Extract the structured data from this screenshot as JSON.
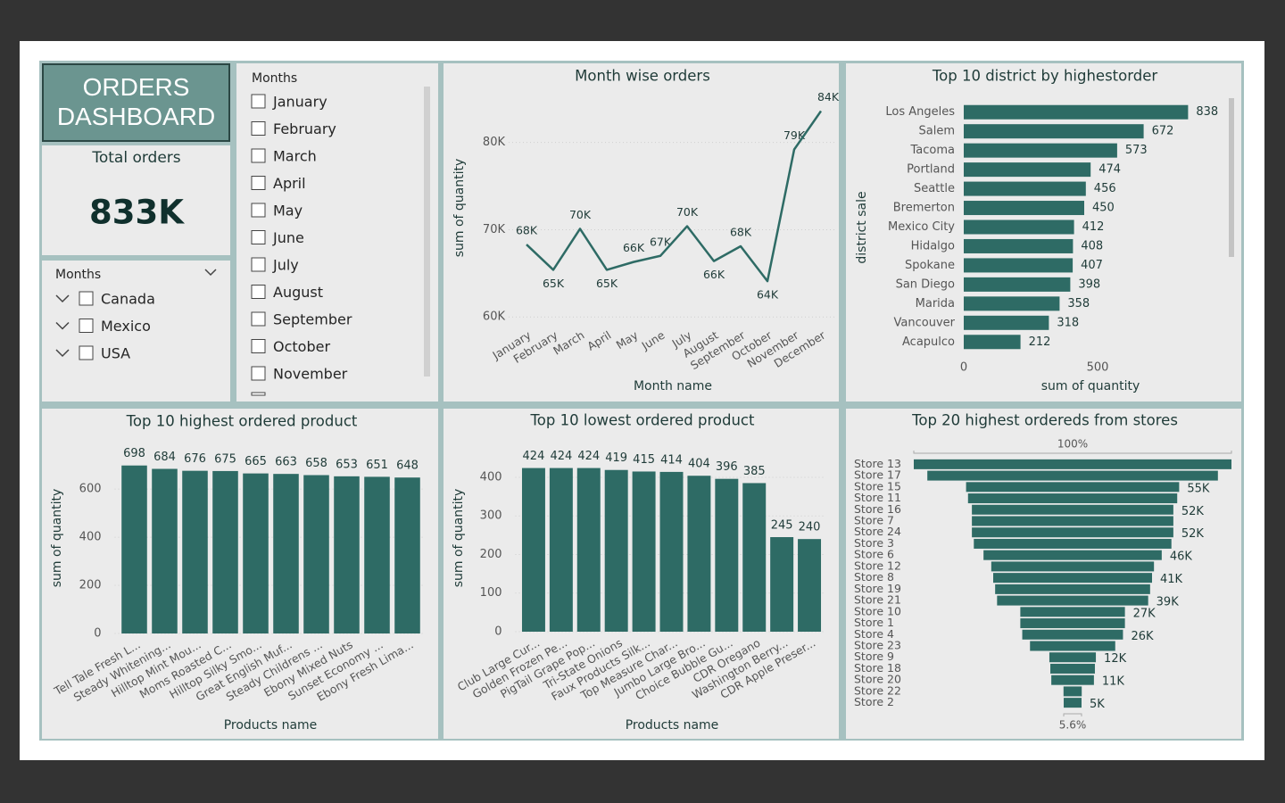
{
  "header": {
    "title": "ORDERS DASHBOARD"
  },
  "kpi": {
    "title": "Total orders",
    "value": "833K"
  },
  "slicers": [
    {
      "title": "Months",
      "items": [
        "Canada",
        "Mexico",
        "USA"
      ]
    },
    {
      "title": "Months",
      "items": [
        "January",
        "February",
        "March",
        "April",
        "May",
        "June",
        "July",
        "August",
        "September",
        "October",
        "November"
      ]
    }
  ],
  "chart_data": [
    {
      "type": "line",
      "title": "Month wise orders",
      "x_label": "Month name",
      "y_label": "sum of quantity",
      "categories": [
        "January",
        "February",
        "March",
        "April",
        "May",
        "June",
        "July",
        "August",
        "September",
        "October",
        "November",
        "December"
      ],
      "values": [
        68300,
        65400,
        70100,
        65400,
        66300,
        67000,
        70400,
        66400,
        68100,
        64100,
        79200,
        83600
      ],
      "value_labels": [
        "68K",
        "65K",
        "70K",
        "65K",
        "66K",
        "67K",
        "70K",
        "66K",
        "68K",
        "64K",
        "79K",
        "84K"
      ],
      "color": "#2e6b65",
      "ylim": [
        59000,
        86000
      ],
      "yticks": [
        {
          "value": 60000,
          "label": "60K"
        },
        {
          "value": 70000,
          "label": "70K"
        },
        {
          "value": 80000,
          "label": "80K"
        }
      ],
      "grid": true
    },
    {
      "type": "hbar",
      "title": "Top 10 district by highestorder",
      "x_label": "sum of quantity",
      "y_label": "district sale",
      "categories": [
        "Los Angeles",
        "Salem",
        "Tacoma",
        "Portland",
        "Seattle",
        "Bremerton",
        "Mexico City",
        "Hidalgo",
        "Spokane",
        "San Diego",
        "Marida",
        "Vancouver",
        "Acapulco"
      ],
      "values": [
        838,
        672,
        573,
        474,
        456,
        450,
        412,
        408,
        407,
        398,
        358,
        318,
        212
      ],
      "color": "#2e6b65",
      "xlim": [
        0,
        850
      ],
      "xticks": [
        0,
        500
      ]
    },
    {
      "type": "bar",
      "title": "Top 10 highest ordered product",
      "x_label": "Products name",
      "y_label": "sum of quantity",
      "categories": [
        "Tell Tale Fresh L...",
        "Steady Whitening...",
        "Hilltop Mint Mou...",
        "Moms Roasted C...",
        "Hilltop Silky Smo...",
        "Great English Muf...",
        "Steady Childrens ...",
        "Ebony Mixed Nuts",
        "Sunset Economy ...",
        "Ebony Fresh Lima..."
      ],
      "values": [
        698,
        684,
        676,
        675,
        665,
        663,
        658,
        653,
        651,
        648
      ],
      "color": "#2e6b65",
      "ylim": [
        0,
        760
      ],
      "yticks": [
        0,
        200,
        400,
        600
      ],
      "grid": true
    },
    {
      "type": "bar",
      "title": "Top 10 lowest ordered product",
      "x_label": "Products name",
      "y_label": "sum of quantity",
      "categories": [
        "Club Large Cur...",
        "Golden Frozen Pe...",
        "PigTail Grape Pop...",
        "Tri-State Onions",
        "Faux Products Silk...",
        "Top Measure Char...",
        "Jumbo Large Bro...",
        "Choice Bubble Gu...",
        "CDR Oregano",
        "Washington Berry...",
        "CDR Apple Preser..."
      ],
      "values": [
        424,
        424,
        424,
        419,
        415,
        414,
        404,
        396,
        385,
        245,
        240
      ],
      "color": "#2e6b65",
      "ylim": [
        0,
        460
      ],
      "yticks": [
        0,
        100,
        200,
        300,
        400
      ],
      "grid": true
    },
    {
      "type": "funnel",
      "title": "Top 20 highest ordereds from stores",
      "categories": [
        "Store 13",
        "Store 17",
        "Store 15",
        "Store 11",
        "Store 16",
        "Store 7",
        "Store 24",
        "Store 3",
        "Store 6",
        "Store 12",
        "Store 8",
        "Store 19",
        "Store 21",
        "Store 10",
        "Store 1",
        "Store 4",
        "Store 23",
        "Store 9",
        "Store 18",
        "Store 20",
        "Store 22",
        "Store 2"
      ],
      "values": [
        82000,
        75000,
        55000,
        54000,
        52000,
        52000,
        52000,
        51000,
        46000,
        42000,
        41000,
        40000,
        39000,
        27000,
        27000,
        26000,
        22000,
        12000,
        11500,
        11000,
        4700,
        4600
      ],
      "value_labels": [
        null,
        null,
        "55K",
        null,
        "52K",
        null,
        "52K",
        null,
        "46K",
        null,
        "41K",
        null,
        "39K",
        "27K",
        null,
        "26K",
        null,
        "12K",
        null,
        "11K",
        null,
        "5K"
      ],
      "first_percent_label": "100%",
      "last_percent_label": "5.6%",
      "color": "#2e6b65"
    }
  ]
}
